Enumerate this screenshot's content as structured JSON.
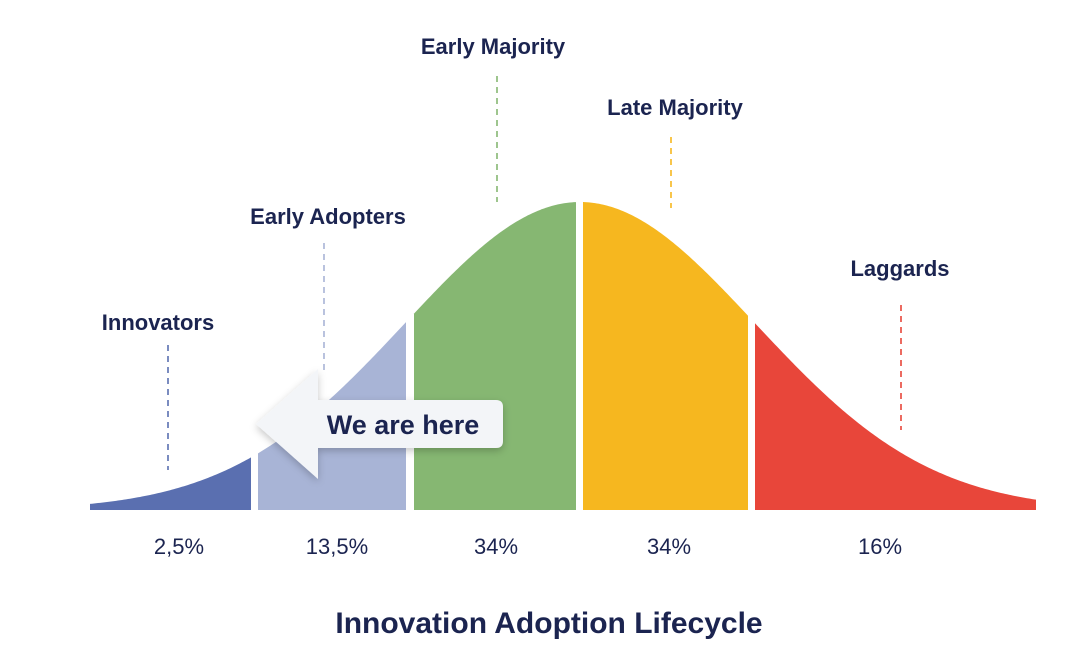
{
  "diagram": {
    "title": "Innovation Adoption Lifecycle",
    "callout": "We are here",
    "segments": [
      {
        "name": "Innovators",
        "percent_label": "2,5%",
        "share": 2.5,
        "color": "#5a6fb0"
      },
      {
        "name": "Early Adopters",
        "percent_label": "13,5%",
        "share": 13.5,
        "color": "#a8b4d6"
      },
      {
        "name": "Early Majority",
        "percent_label": "34%",
        "share": 34,
        "color": "#86b772"
      },
      {
        "name": "Late Majority",
        "percent_label": "34%",
        "share": 34,
        "color": "#f6b71f"
      },
      {
        "name": "Laggards",
        "percent_label": "16%",
        "share": 16,
        "color": "#e8463a"
      }
    ],
    "text_color": "#1b2450"
  }
}
